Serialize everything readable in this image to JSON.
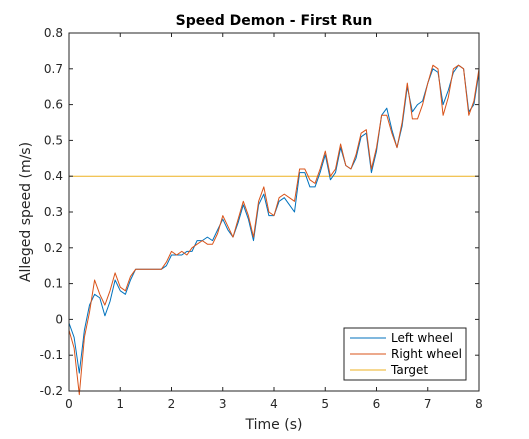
{
  "chart_data": {
    "type": "line",
    "title": "Speed Demon - First Run",
    "xlabel": "Time (s)",
    "ylabel": "Alleged speed (m/s)",
    "xlim": [
      0,
      8
    ],
    "ylim": [
      -0.2,
      0.8
    ],
    "xticks": [
      "0",
      "1",
      "2",
      "3",
      "4",
      "5",
      "6",
      "7",
      "8"
    ],
    "yticks": [
      "-0.2",
      "-0.1",
      "0",
      "0.1",
      "0.2",
      "0.3",
      "0.4",
      "0.5",
      "0.6",
      "0.7",
      "0.8"
    ],
    "grid": false,
    "legend_location": "bottom-right",
    "series": [
      {
        "name": "Left wheel",
        "color": "#0072BD",
        "x": [
          0,
          0.1,
          0.2,
          0.3,
          0.4,
          0.5,
          0.6,
          0.7,
          0.8,
          0.9,
          1.0,
          1.1,
          1.2,
          1.3,
          1.4,
          1.5,
          1.6,
          1.7,
          1.8,
          1.9,
          2.0,
          2.1,
          2.2,
          2.3,
          2.4,
          2.5,
          2.6,
          2.7,
          2.8,
          2.9,
          3.0,
          3.1,
          3.2,
          3.3,
          3.4,
          3.5,
          3.6,
          3.7,
          3.8,
          3.9,
          4.0,
          4.1,
          4.2,
          4.3,
          4.4,
          4.5,
          4.6,
          4.7,
          4.8,
          4.9,
          5.0,
          5.1,
          5.2,
          5.3,
          5.4,
          5.5,
          5.6,
          5.7,
          5.8,
          5.9,
          6.0,
          6.1,
          6.2,
          6.3,
          6.4,
          6.5,
          6.6,
          6.7,
          6.8,
          6.9,
          7.0,
          7.1,
          7.2,
          7.3,
          7.4,
          7.5,
          7.6,
          7.7,
          7.8,
          7.9,
          8.0
        ],
        "y": [
          -0.01,
          -0.05,
          -0.15,
          -0.03,
          0.04,
          0.07,
          0.06,
          0.01,
          0.05,
          0.11,
          0.08,
          0.07,
          0.11,
          0.14,
          0.14,
          0.14,
          0.14,
          0.14,
          0.14,
          0.15,
          0.18,
          0.18,
          0.18,
          0.19,
          0.19,
          0.22,
          0.22,
          0.23,
          0.22,
          0.25,
          0.28,
          0.25,
          0.23,
          0.27,
          0.32,
          0.28,
          0.22,
          0.32,
          0.35,
          0.29,
          0.29,
          0.33,
          0.34,
          0.32,
          0.3,
          0.41,
          0.41,
          0.37,
          0.37,
          0.41,
          0.46,
          0.39,
          0.41,
          0.48,
          0.43,
          0.42,
          0.45,
          0.51,
          0.52,
          0.41,
          0.47,
          0.57,
          0.59,
          0.53,
          0.48,
          0.54,
          0.65,
          0.58,
          0.6,
          0.61,
          0.66,
          0.7,
          0.69,
          0.6,
          0.64,
          0.69,
          0.71,
          0.7,
          0.58,
          0.6,
          0.69
        ]
      },
      {
        "name": "Right wheel",
        "color": "#D95319",
        "x": [
          0,
          0.1,
          0.2,
          0.3,
          0.4,
          0.5,
          0.6,
          0.7,
          0.8,
          0.9,
          1.0,
          1.1,
          1.2,
          1.3,
          1.4,
          1.5,
          1.6,
          1.7,
          1.8,
          1.9,
          2.0,
          2.1,
          2.2,
          2.3,
          2.4,
          2.5,
          2.6,
          2.7,
          2.8,
          2.9,
          3.0,
          3.1,
          3.2,
          3.3,
          3.4,
          3.5,
          3.6,
          3.7,
          3.8,
          3.9,
          4.0,
          4.1,
          4.2,
          4.3,
          4.4,
          4.5,
          4.6,
          4.7,
          4.8,
          4.9,
          5.0,
          5.1,
          5.2,
          5.3,
          5.4,
          5.5,
          5.6,
          5.7,
          5.8,
          5.9,
          6.0,
          6.1,
          6.2,
          6.3,
          6.4,
          6.5,
          6.6,
          6.7,
          6.8,
          6.9,
          7.0,
          7.1,
          7.2,
          7.3,
          7.4,
          7.5,
          7.6,
          7.7,
          7.8,
          7.9,
          8.0
        ],
        "y": [
          -0.03,
          -0.08,
          -0.21,
          -0.05,
          0.02,
          0.11,
          0.07,
          0.04,
          0.08,
          0.13,
          0.09,
          0.08,
          0.12,
          0.14,
          0.14,
          0.14,
          0.14,
          0.14,
          0.14,
          0.16,
          0.19,
          0.18,
          0.19,
          0.18,
          0.2,
          0.21,
          0.22,
          0.21,
          0.21,
          0.24,
          0.29,
          0.26,
          0.23,
          0.28,
          0.33,
          0.29,
          0.23,
          0.33,
          0.37,
          0.3,
          0.29,
          0.34,
          0.35,
          0.34,
          0.33,
          0.42,
          0.42,
          0.39,
          0.38,
          0.42,
          0.47,
          0.4,
          0.42,
          0.49,
          0.43,
          0.42,
          0.46,
          0.52,
          0.53,
          0.42,
          0.48,
          0.57,
          0.57,
          0.52,
          0.48,
          0.55,
          0.66,
          0.56,
          0.56,
          0.6,
          0.66,
          0.71,
          0.7,
          0.57,
          0.62,
          0.7,
          0.71,
          0.7,
          0.57,
          0.61,
          0.7
        ]
      },
      {
        "name": "Target",
        "color": "#EDB120",
        "x": [
          0,
          8
        ],
        "y": [
          0.4,
          0.4
        ]
      }
    ]
  }
}
